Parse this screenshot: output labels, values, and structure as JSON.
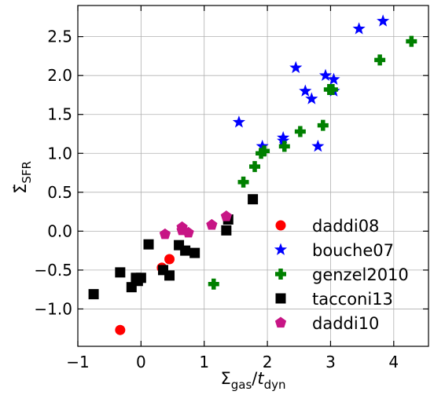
{
  "chart_data": {
    "type": "scatter",
    "xlabel_main": "Σ",
    "xlabel_sub": "gas",
    "xlabel_slash": "/",
    "xlabel_t": "t",
    "xlabel_tsub": "dyn",
    "ylabel_main": "Σ̇",
    "ylabel_sub": "SFR",
    "xlim": [
      -1.0,
      4.55
    ],
    "ylim": [
      -1.48,
      2.9
    ],
    "xticks": [
      -1,
      0,
      1,
      2,
      3,
      4
    ],
    "xtick_labels": [
      "−1",
      "0",
      "1",
      "2",
      "3",
      "4"
    ],
    "yticks": [
      -1.0,
      -0.5,
      0.0,
      0.5,
      1.0,
      1.5,
      2.0,
      2.5
    ],
    "ytick_labels": [
      "−1.0",
      "−0.5",
      "0.0",
      "0.5",
      "1.0",
      "1.5",
      "2.0",
      "2.5"
    ],
    "grid": true,
    "legend_position": "lower-right",
    "series": [
      {
        "name": "daddi08",
        "marker": "circle",
        "color": "#ff0000",
        "points": [
          [
            -0.33,
            -1.27
          ],
          [
            0.33,
            -0.47
          ],
          [
            0.45,
            -0.36
          ]
        ]
      },
      {
        "name": "bouche07",
        "marker": "star",
        "color": "#0000ff",
        "points": [
          [
            1.55,
            1.4
          ],
          [
            1.92,
            1.09
          ],
          [
            2.25,
            1.16
          ],
          [
            2.25,
            1.2
          ],
          [
            2.45,
            2.1
          ],
          [
            2.6,
            1.8
          ],
          [
            2.7,
            1.7
          ],
          [
            2.8,
            1.09
          ],
          [
            2.92,
            2.0
          ],
          [
            3.05,
            1.8
          ],
          [
            3.05,
            1.95
          ],
          [
            3.45,
            2.6
          ],
          [
            3.83,
            2.7
          ]
        ]
      },
      {
        "name": "genzel2010",
        "marker": "plus",
        "color": "#008000",
        "points": [
          [
            1.15,
            -0.68
          ],
          [
            1.62,
            0.63
          ],
          [
            1.8,
            0.83
          ],
          [
            1.9,
            1.0
          ],
          [
            1.95,
            1.03
          ],
          [
            2.27,
            1.09
          ],
          [
            2.52,
            1.28
          ],
          [
            2.88,
            1.36
          ],
          [
            2.98,
            1.82
          ],
          [
            3.03,
            1.82
          ],
          [
            3.78,
            2.2
          ],
          [
            4.28,
            2.44
          ]
        ]
      },
      {
        "name": "tacconi13",
        "marker": "square",
        "color": "#000000",
        "points": [
          [
            -0.75,
            -0.81
          ],
          [
            -0.33,
            -0.53
          ],
          [
            -0.15,
            -0.72
          ],
          [
            -0.08,
            -0.6
          ],
          [
            -0.05,
            -0.64
          ],
          [
            0.0,
            -0.6
          ],
          [
            0.12,
            -0.17
          ],
          [
            0.35,
            -0.5
          ],
          [
            0.45,
            -0.57
          ],
          [
            0.6,
            -0.18
          ],
          [
            0.7,
            -0.25
          ],
          [
            0.85,
            -0.28
          ],
          [
            1.35,
            0.01
          ],
          [
            1.38,
            0.15
          ],
          [
            1.77,
            0.41
          ]
        ]
      },
      {
        "name": "daddi10",
        "marker": "pentagon",
        "color": "#c71585",
        "points": [
          [
            0.38,
            -0.04
          ],
          [
            0.65,
            0.05
          ],
          [
            0.65,
            0.01
          ],
          [
            0.75,
            -0.02
          ],
          [
            1.12,
            0.08
          ],
          [
            1.35,
            0.19
          ]
        ]
      }
    ]
  }
}
